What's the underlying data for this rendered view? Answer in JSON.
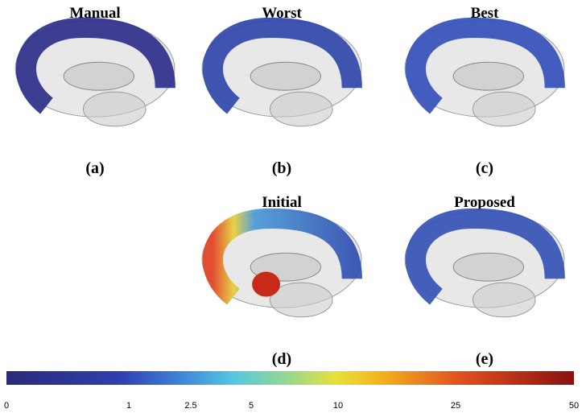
{
  "panels": [
    {
      "title": "Manual",
      "label": "(a)"
    },
    {
      "title": "Worst",
      "label": "(b)"
    },
    {
      "title": "Best",
      "label": "(c)"
    },
    {
      "title": "Initial",
      "label": "(d)"
    },
    {
      "title": "Proposed",
      "label": "(e)"
    }
  ],
  "colorbar": {
    "ticks": [
      "0",
      "1",
      "2.5",
      "5",
      "10",
      "25",
      "50"
    ]
  }
}
